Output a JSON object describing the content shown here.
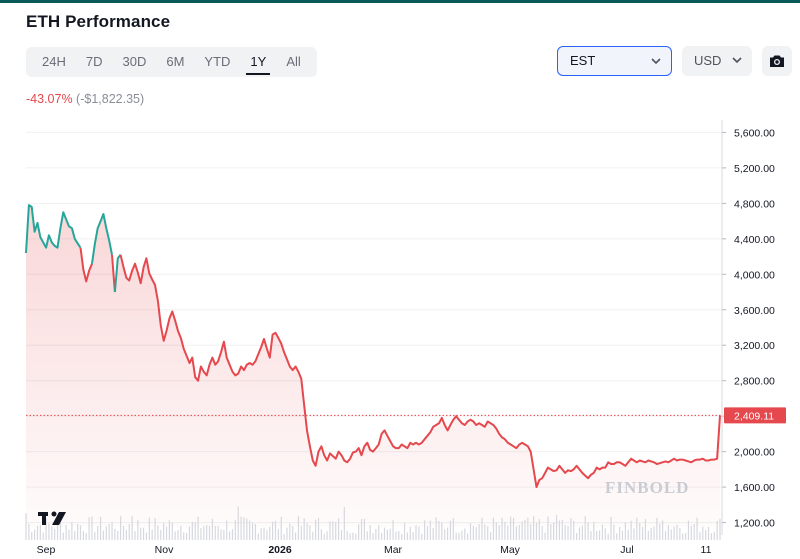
{
  "header": {
    "title": "ETH Performance",
    "ranges": [
      "24H",
      "7D",
      "30D",
      "6M",
      "YTD",
      "1Y",
      "All"
    ],
    "active_range": "1Y",
    "timezone": "EST",
    "currency": "USD",
    "camera_icon": "camera-icon",
    "chevron_icon": "chevron-down-icon"
  },
  "performance": {
    "percent": "-43.07%",
    "absolute": "(-$1,822.35)"
  },
  "watermark": "FINBOLD",
  "colors": {
    "up": "#26a69a",
    "down": "#e5484d",
    "accent": "#2962ff",
    "brand": "#0c5959"
  },
  "chart_data": {
    "type": "area",
    "title": "",
    "xlabel": "",
    "ylabel": "",
    "x_tick_labels": [
      "Sep",
      "Nov",
      "2026",
      "Mar",
      "May",
      "Jul",
      "11"
    ],
    "y_ticks": [
      1200,
      1600,
      2000,
      2400,
      2800,
      3200,
      3600,
      4000,
      4400,
      4800,
      5200,
      5600
    ],
    "y_tick_labels": [
      "1,200.00",
      "1,600.00",
      "2,000.00",
      "2,400.00",
      "2,800.00",
      "3,200.00",
      "3,600.00",
      "4,000.00",
      "4,400.00",
      "4,800.00",
      "5,200.00",
      "5,600.00"
    ],
    "ylim": [
      1150,
      5650
    ],
    "current_price": 2409.11,
    "current_price_label": "2,409.11",
    "price_series": [
      [
        "Aug 12",
        4240
      ],
      [
        "Aug 13",
        4780
      ],
      [
        "Aug 14",
        4760
      ],
      [
        "Aug 15",
        4480
      ],
      [
        "Aug 16",
        4580
      ],
      [
        "Aug 17",
        4420
      ],
      [
        "Aug 18",
        4360
      ],
      [
        "Aug 19",
        4300
      ],
      [
        "Aug 20",
        4440
      ],
      [
        "Aug 21",
        4360
      ],
      [
        "Aug 22",
        4320
      ],
      [
        "Aug 23",
        4300
      ],
      [
        "Aug 24",
        4520
      ],
      [
        "Aug 25",
        4700
      ],
      [
        "Aug 26",
        4620
      ],
      [
        "Aug 27",
        4540
      ],
      [
        "Aug 28",
        4520
      ],
      [
        "Aug 29",
        4400
      ],
      [
        "Aug 30",
        4350
      ],
      [
        "Aug 31",
        4300
      ],
      [
        "Sep 1",
        4050
      ],
      [
        "Sep 2",
        3920
      ],
      [
        "Sep 3",
        4040
      ],
      [
        "Sep 4",
        4120
      ],
      [
        "Sep 5",
        4340
      ],
      [
        "Sep 6",
        4520
      ],
      [
        "Sep 7",
        4600
      ],
      [
        "Sep 8",
        4680
      ],
      [
        "Sep 9",
        4520
      ],
      [
        "Sep 10",
        4380
      ],
      [
        "Sep 11",
        4220
      ],
      [
        "Sep 12",
        3800
      ],
      [
        "Sep 13",
        4180
      ],
      [
        "Sep 14",
        4220
      ],
      [
        "Sep 15",
        4080
      ],
      [
        "Sep 16",
        3960
      ],
      [
        "Sep 17",
        3930
      ],
      [
        "Sep 18",
        4040
      ],
      [
        "Sep 19",
        4120
      ],
      [
        "Sep 20",
        4020
      ],
      [
        "Sep 21",
        3900
      ],
      [
        "Sep 22",
        4080
      ],
      [
        "Sep 23",
        4180
      ],
      [
        "Sep 24",
        4010
      ],
      [
        "Sep 25",
        3940
      ],
      [
        "Sep 26",
        3880
      ],
      [
        "Sep 27",
        3700
      ],
      [
        "Sep 28",
        3420
      ],
      [
        "Sep 29",
        3250
      ],
      [
        "Sep 30",
        3360
      ],
      [
        "Oct 1",
        3500
      ],
      [
        "Oct 2",
        3580
      ],
      [
        "Oct 3",
        3480
      ],
      [
        "Oct 4",
        3360
      ],
      [
        "Oct 5",
        3280
      ],
      [
        "Oct 6",
        3160
      ],
      [
        "Oct 7",
        3080
      ],
      [
        "Oct 8",
        3000
      ],
      [
        "Oct 9",
        3060
      ],
      [
        "Oct 10",
        2840
      ],
      [
        "Oct 11",
        2800
      ],
      [
        "Oct 12",
        2960
      ],
      [
        "Oct 13",
        2900
      ],
      [
        "Oct 14",
        2860
      ],
      [
        "Oct 15",
        2980
      ],
      [
        "Oct 16",
        3060
      ],
      [
        "Oct 17",
        2980
      ],
      [
        "Oct 18",
        3020
      ],
      [
        "Oct 19",
        3120
      ],
      [
        "Oct 20",
        3240
      ],
      [
        "Oct 21",
        3060
      ],
      [
        "Oct 22",
        2980
      ],
      [
        "Oct 23",
        2900
      ],
      [
        "Oct 24",
        2860
      ],
      [
        "Oct 25",
        2880
      ],
      [
        "Oct 26",
        2960
      ],
      [
        "Oct 27",
        2920
      ],
      [
        "Oct 28",
        2980
      ],
      [
        "Oct 29",
        3000
      ],
      [
        "Oct 30",
        2980
      ],
      [
        "Oct 31",
        3020
      ],
      [
        "Nov 1",
        3100
      ],
      [
        "Nov 2",
        3180
      ],
      [
        "Nov 3",
        3270
      ],
      [
        "Nov 4",
        3160
      ],
      [
        "Nov 5",
        3060
      ],
      [
        "Nov 6",
        3320
      ],
      [
        "Nov 7",
        3340
      ],
      [
        "Nov 8",
        3280
      ],
      [
        "Nov 9",
        3220
      ],
      [
        "Nov 10",
        3120
      ],
      [
        "Nov 11",
        3040
      ],
      [
        "Nov 12",
        2960
      ],
      [
        "Nov 13",
        2920
      ],
      [
        "Nov 14",
        2960
      ],
      [
        "Nov 15",
        2900
      ],
      [
        "Nov 16",
        2820
      ],
      [
        "Nov 17",
        2520
      ],
      [
        "Nov 18",
        2240
      ],
      [
        "Nov 19",
        2060
      ],
      [
        "Nov 20",
        1900
      ],
      [
        "Nov 21",
        1840
      ],
      [
        "Nov 22",
        2000
      ],
      [
        "Nov 23",
        2060
      ],
      [
        "Nov 24",
        1960
      ],
      [
        "Nov 25",
        1900
      ],
      [
        "Nov 26",
        1980
      ],
      [
        "Nov 27",
        1950
      ],
      [
        "Nov 28",
        1920
      ],
      [
        "Nov 29",
        2000
      ],
      [
        "Nov 30",
        1960
      ],
      [
        "Dec 1",
        1900
      ],
      [
        "Dec 2",
        1880
      ],
      [
        "Dec 3",
        1920
      ],
      [
        "Dec 4",
        1990
      ],
      [
        "Dec 5",
        2000
      ],
      [
        "Dec 6",
        2040
      ],
      [
        "Dec 7",
        1960
      ],
      [
        "Dec 8",
        2060
      ],
      [
        "Dec 9",
        2100
      ],
      [
        "Dec 10",
        2020
      ],
      [
        "Dec 11",
        2000
      ],
      [
        "Dec 12",
        2040
      ],
      [
        "Dec 13",
        2080
      ],
      [
        "Dec 14",
        2200
      ],
      [
        "Dec 15",
        2240
      ],
      [
        "Dec 16",
        2180
      ],
      [
        "Dec 17",
        2120
      ],
      [
        "Dec 18",
        2060
      ],
      [
        "Dec 19",
        2040
      ],
      [
        "Dec 20",
        2040
      ],
      [
        "Dec 21",
        2080
      ],
      [
        "Dec 22",
        2060
      ],
      [
        "Dec 23",
        2040
      ],
      [
        "Dec 24",
        2100
      ],
      [
        "Dec 25",
        2080
      ],
      [
        "Dec 26",
        2100
      ],
      [
        "Dec 27",
        2080
      ],
      [
        "Dec 28",
        2100
      ],
      [
        "Dec 29",
        2140
      ],
      [
        "Dec 30",
        2180
      ],
      [
        "Dec 31",
        2220
      ],
      [
        "Jan 1",
        2280
      ],
      [
        "Jan 2",
        2300
      ],
      [
        "Jan 3",
        2320
      ],
      [
        "Jan 4",
        2380
      ],
      [
        "Jan 5",
        2300
      ],
      [
        "Jan 6",
        2240
      ],
      [
        "Jan 7",
        2300
      ],
      [
        "Jan 8",
        2360
      ],
      [
        "Jan 9",
        2400
      ],
      [
        "Jan 10",
        2360
      ],
      [
        "Jan 11",
        2320
      ],
      [
        "Jan 12",
        2300
      ],
      [
        "Jan 13",
        2340
      ],
      [
        "Jan 14",
        2360
      ],
      [
        "Jan 15",
        2340
      ],
      [
        "Jan 16",
        2300
      ],
      [
        "Jan 17",
        2320
      ],
      [
        "Jan 18",
        2300
      ],
      [
        "Jan 19",
        2280
      ],
      [
        "Jan 20",
        2340
      ],
      [
        "Jan 21",
        2320
      ],
      [
        "Jan 22",
        2300
      ],
      [
        "Jan 23",
        2260
      ],
      [
        "Jan 24",
        2200
      ],
      [
        "Jan 25",
        2160
      ],
      [
        "Jan 26",
        2140
      ],
      [
        "Jan 27",
        2100
      ],
      [
        "Jan 28",
        2080
      ],
      [
        "Jan 29",
        2060
      ],
      [
        "Jan 30",
        2040
      ],
      [
        "Jan 31",
        2080
      ],
      [
        "Feb 1",
        2100
      ],
      [
        "Feb 2",
        2080
      ],
      [
        "Feb 3",
        2060
      ],
      [
        "Feb 4",
        2000
      ],
      [
        "Feb 5",
        1800
      ],
      [
        "Feb 6",
        1600
      ],
      [
        "Feb 7",
        1680
      ],
      [
        "Feb 8",
        1700
      ],
      [
        "Feb 9",
        1760
      ],
      [
        "Feb 10",
        1820
      ],
      [
        "Feb 11",
        1800
      ],
      [
        "Feb 12",
        1780
      ],
      [
        "Feb 13",
        1790
      ],
      [
        "Feb 14",
        1840
      ],
      [
        "Feb 15",
        1800
      ],
      [
        "Feb 16",
        1760
      ],
      [
        "Feb 17",
        1790
      ],
      [
        "Feb 18",
        1780
      ],
      [
        "Feb 19",
        1800
      ],
      [
        "Feb 20",
        1840
      ],
      [
        "Feb 21",
        1800
      ],
      [
        "Feb 22",
        1760
      ],
      [
        "Feb 23",
        1730
      ],
      [
        "Feb 24",
        1700
      ],
      [
        "Feb 25",
        1740
      ],
      [
        "Feb 26",
        1760
      ],
      [
        "Feb 27",
        1820
      ],
      [
        "Feb 28",
        1800
      ],
      [
        "Mar 1",
        1820
      ],
      [
        "Mar 2",
        1820
      ],
      [
        "Mar 3",
        1880
      ],
      [
        "Mar 4",
        1860
      ],
      [
        "Mar 5",
        1860
      ],
      [
        "Mar 6",
        1880
      ],
      [
        "Mar 7",
        1880
      ],
      [
        "Mar 8",
        1860
      ],
      [
        "Mar 9",
        1840
      ],
      [
        "Mar 10",
        1880
      ],
      [
        "Mar 11",
        1920
      ],
      [
        "Mar 12",
        1900
      ],
      [
        "Mar 13",
        1880
      ],
      [
        "Mar 14",
        1900
      ],
      [
        "Mar 15",
        1890
      ],
      [
        "Mar 16",
        1880
      ],
      [
        "Mar 17",
        1900
      ],
      [
        "Mar 18",
        1890
      ],
      [
        "Mar 19",
        1880
      ],
      [
        "Mar 20",
        1860
      ],
      [
        "Mar 21",
        1870
      ],
      [
        "Mar 22",
        1880
      ],
      [
        "Mar 23",
        1890
      ],
      [
        "Mar 24",
        1880
      ],
      [
        "Mar 25",
        1900
      ],
      [
        "Mar 26",
        1920
      ],
      [
        "Mar 27",
        1900
      ],
      [
        "Mar 28",
        1910
      ],
      [
        "Mar 29",
        1910
      ],
      [
        "Mar 30",
        1900
      ],
      [
        "Mar 31",
        1890
      ],
      [
        "Apr 1",
        1880
      ],
      [
        "Apr 2",
        1900
      ],
      [
        "Apr 3",
        1910
      ],
      [
        "Apr 4",
        1910
      ],
      [
        "Apr 5",
        1920
      ],
      [
        "Apr 6",
        1900
      ],
      [
        "Apr 7",
        1900
      ],
      [
        "Apr 8",
        1910
      ],
      [
        "Apr 9",
        1910
      ],
      [
        "Apr 10",
        1920
      ],
      [
        "Apr 11",
        2409.11
      ]
    ]
  },
  "volume": {
    "description": "volume bars"
  }
}
